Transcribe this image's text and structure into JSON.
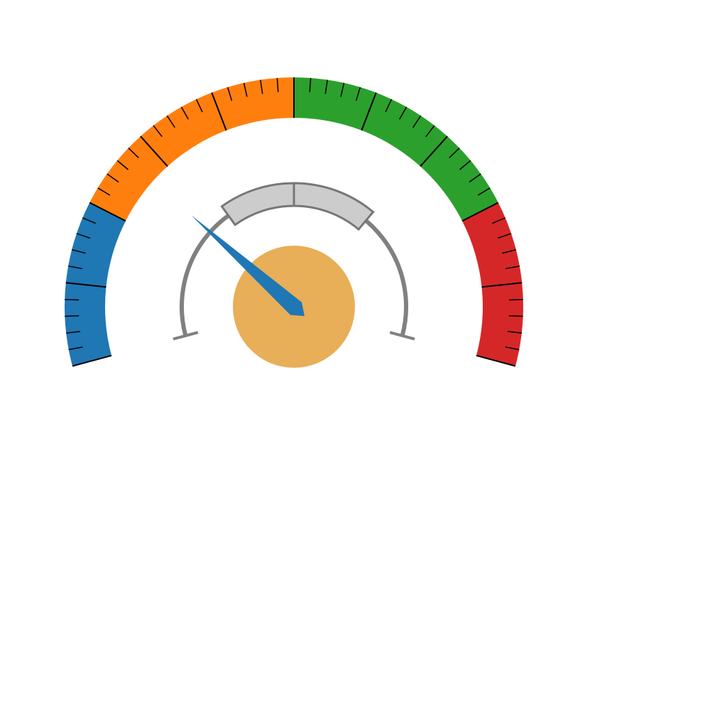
{
  "chart_data": {
    "type": "gauge",
    "title": "",
    "outer_scale": {
      "min": 0,
      "max": 100,
      "major_tick_step": 10,
      "minor_tick_step": 2,
      "tick_labels": "none",
      "bands": [
        {
          "name": "",
          "from": 0,
          "to": 20,
          "color": "#1f77b4"
        },
        {
          "name": "",
          "from": 20,
          "to": 50,
          "color": "#ff7f0e"
        },
        {
          "name": "",
          "from": 50,
          "to": 80,
          "color": "#2ca02c"
        },
        {
          "name": "",
          "from": 80,
          "to": 100,
          "color": "#d62728"
        }
      ]
    },
    "needle": {
      "value": 27,
      "color": "#1f77b4"
    },
    "hub": {
      "color": "#e8ae58"
    },
    "inner_scale": {
      "min": 0,
      "max": 100,
      "track_color": "#808080",
      "bands": [
        {
          "from": 33,
          "to": 50,
          "color": "#cccccc"
        },
        {
          "from": 50,
          "to": 69,
          "color": "#cccccc"
        }
      ],
      "band_border_color": "#777777"
    }
  }
}
